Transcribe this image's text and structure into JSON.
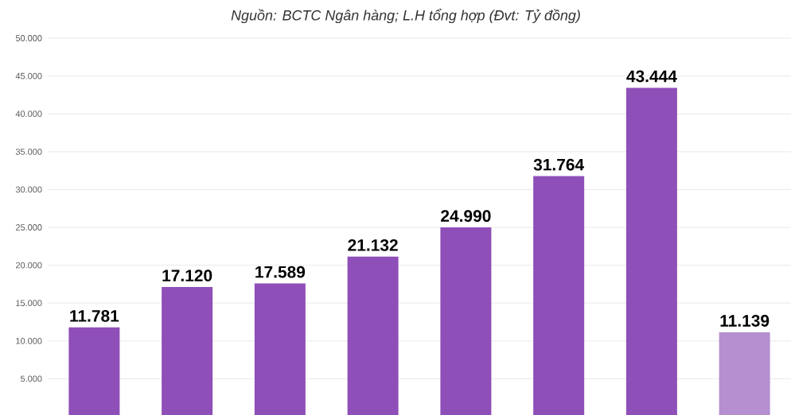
{
  "chart_data": {
    "type": "bar",
    "subtitle": "Nguồn: BCTC Ngân hàng; L.H tổng hợp (Đvt: Tỷ đồng)",
    "categories": [
      null,
      null,
      null,
      null,
      null,
      null,
      null,
      null
    ],
    "values": [
      11781,
      17120,
      17589,
      21132,
      24990,
      31764,
      43444,
      11139
    ],
    "colors": [
      "#8e4fb8",
      "#8e4fb8",
      "#8e4fb8",
      "#8e4fb8",
      "#8e4fb8",
      "#8e4fb8",
      "#8e4fb8",
      "#b58fd0"
    ],
    "value_labels": [
      "11.781",
      "17.120",
      "17.589",
      "21.132",
      "24.990",
      "31.764",
      "43.444",
      "11.139"
    ],
    "grid": "y",
    "ylim": [
      0,
      50000
    ],
    "yticks": [
      {
        "value": 5000,
        "label": "5.000"
      },
      {
        "value": 10000,
        "label": "10.000"
      },
      {
        "value": 15000,
        "label": "15.000"
      },
      {
        "value": 20000,
        "label": "20.000"
      },
      {
        "value": 25000,
        "label": "25.000"
      },
      {
        "value": 30000,
        "label": "30.000"
      },
      {
        "value": 35000,
        "label": "35.000"
      },
      {
        "value": 40000,
        "label": "40.000"
      },
      {
        "value": 45000,
        "label": "45.000"
      },
      {
        "value": 50000,
        "label": "50.000"
      }
    ]
  }
}
